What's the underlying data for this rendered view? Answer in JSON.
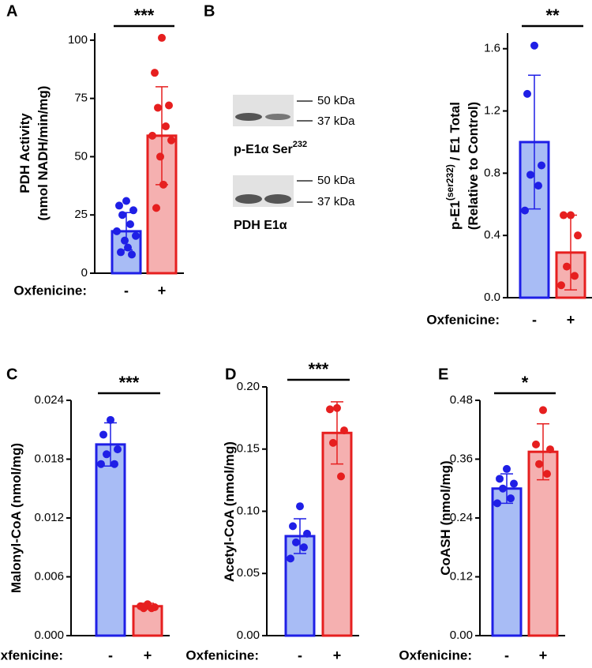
{
  "chart_data": [
    {
      "type": "bar",
      "panel_label": "A",
      "ylabel_lines": [
        [
          {
            "text": "PDH Activity"
          }
        ],
        [
          {
            "text": "(nmol NADH/min/mg)"
          }
        ]
      ],
      "xlabel": "Oxfenicine:",
      "categories": [
        "-",
        "+"
      ],
      "significance": "***",
      "values": [
        18,
        59
      ],
      "errors": [
        8,
        21
      ],
      "points": [
        [
          31,
          29,
          27,
          25,
          21,
          18,
          16,
          14,
          11,
          9,
          8
        ],
        [
          101,
          86,
          72,
          71,
          63,
          59,
          57,
          50,
          38,
          28
        ]
      ],
      "edge_colors": [
        "#1f1fe6",
        "#e61f1f"
      ],
      "fill_colors": [
        "#a8bcf5",
        "#f5b0b0"
      ],
      "ylim": [
        0,
        103
      ],
      "yticks": [
        0,
        25,
        50,
        75,
        100
      ]
    },
    {
      "type": "bar",
      "ylabel_lines": [
        [
          {
            "text": "p-E1"
          },
          {
            "text": "(ser232)",
            "sup": true
          },
          {
            "text": " / E1 Total"
          }
        ],
        [
          {
            "text": "(Relative to Control)"
          }
        ]
      ],
      "xlabel": "Oxfenicine:",
      "categories": [
        "-",
        "+"
      ],
      "significance": "**",
      "values": [
        1.0,
        0.29
      ],
      "errors": [
        0.43,
        0.24
      ],
      "points": [
        [
          1.62,
          1.31,
          0.85,
          0.79,
          0.72,
          0.56
        ],
        [
          0.53,
          0.53,
          0.4,
          0.2,
          0.14,
          0.08
        ]
      ],
      "edge_colors": [
        "#1f1fe6",
        "#e61f1f"
      ],
      "fill_colors": [
        "#a8bcf5",
        "#f5b0b0"
      ],
      "ylim": [
        0,
        1.7
      ],
      "yticks": [
        {
          "value": 0,
          "label": "0.0"
        },
        0.4,
        0.8,
        1.2,
        1.6
      ]
    },
    {
      "type": "bar",
      "panel_label": "C",
      "ylabel_lines": [
        [
          {
            "text": "Malonyl-CoA (nmol/mg)"
          }
        ]
      ],
      "xlabel": "Oxfenicine:",
      "categories": [
        "-",
        "+"
      ],
      "significance": "***",
      "values": [
        0.0195,
        0.003
      ],
      "errors": [
        0.0022,
        0.0003
      ],
      "points": [
        [
          0.022,
          0.0205,
          0.019,
          0.0185,
          0.0175,
          0.0175
        ],
        [
          0.0032,
          0.003,
          0.0029,
          0.0028,
          0.0028
        ]
      ],
      "edge_colors": [
        "#1f1fe6",
        "#e61f1f"
      ],
      "fill_colors": [
        "#a8bcf5",
        "#f5b0b0"
      ],
      "ylim": [
        0,
        0.024
      ],
      "yticks": [
        {
          "value": 0,
          "label": "0.000"
        },
        0.006,
        0.012,
        0.018,
        0.024
      ]
    },
    {
      "type": "bar",
      "panel_label": "D",
      "ylabel_lines": [
        [
          {
            "text": "Acetyl-CoA (nmol/mg)"
          }
        ]
      ],
      "xlabel": "Oxfenicine:",
      "categories": [
        "-",
        "+"
      ],
      "significance": "***",
      "values": [
        0.08,
        0.163
      ],
      "errors": [
        0.014,
        0.025
      ],
      "points": [
        [
          0.104,
          0.088,
          0.082,
          0.075,
          0.071,
          0.062
        ],
        [
          0.183,
          0.182,
          0.165,
          0.155,
          0.128
        ]
      ],
      "edge_colors": [
        "#1f1fe6",
        "#e61f1f"
      ],
      "fill_colors": [
        "#a8bcf5",
        "#f5b0b0"
      ],
      "ylim": [
        0,
        0.2
      ],
      "yticks": [
        {
          "value": 0,
          "label": "0.00"
        },
        0.05,
        {
          "value": 0.1,
          "label": "0.10"
        },
        0.15,
        {
          "value": 0.2,
          "label": "0.20"
        }
      ]
    },
    {
      "type": "bar",
      "panel_label": "E",
      "ylabel_lines": [
        [
          {
            "text": "CoASH (nmol/mg)"
          }
        ]
      ],
      "xlabel": "Oxfenicine:",
      "categories": [
        "-",
        "+"
      ],
      "significance": "*",
      "values": [
        0.3,
        0.375
      ],
      "errors": [
        0.03,
        0.057
      ],
      "points": [
        [
          0.34,
          0.32,
          0.31,
          0.3,
          0.28,
          0.27
        ],
        [
          0.46,
          0.39,
          0.38,
          0.35,
          0.33
        ]
      ],
      "edge_colors": [
        "#1f1fe6",
        "#e61f1f"
      ],
      "fill_colors": [
        "#a8bcf5",
        "#f5b0b0"
      ],
      "ylim": [
        0,
        0.48
      ],
      "yticks": [
        {
          "value": 0,
          "label": "0.00"
        },
        0.12,
        0.24,
        0.36,
        0.48
      ]
    }
  ],
  "blot": {
    "panel_label": "B",
    "rows": [
      {
        "label": "p-E1α Ser",
        "label_sup": "232",
        "markers": [
          "50 kDa",
          "37 kDa"
        ]
      },
      {
        "label": "PDH E1α",
        "markers": [
          "50 kDa",
          "37 kDa"
        ]
      }
    ]
  }
}
